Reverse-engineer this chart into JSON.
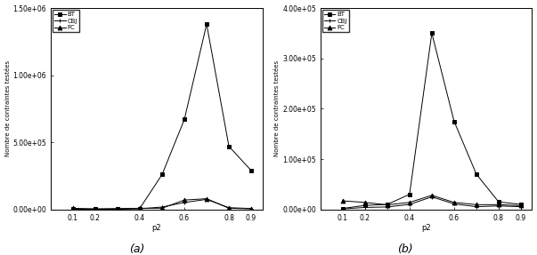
{
  "x": [
    0.1,
    0.2,
    0.3,
    0.4,
    0.5,
    0.6,
    0.7,
    0.8,
    0.9
  ],
  "chart_a": {
    "BT": [
      1500,
      2500,
      3500,
      8000,
      260000,
      670000,
      1380000,
      470000,
      290000
    ],
    "CBJ": [
      1000,
      1500,
      2500,
      4500,
      18000,
      52000,
      75000,
      13000,
      7000
    ],
    "FC": [
      8500,
      4500,
      5500,
      9000,
      9000,
      70000,
      80000,
      9000,
      4500
    ],
    "ylim": [
      0,
      1500000.0
    ],
    "yticks": [
      0.0,
      500000.0,
      1000000.0,
      1500000.0
    ],
    "yticklabels": [
      "0.00e+00",
      "5.00e+05",
      "1.00e+06",
      "1.50e+06"
    ]
  },
  "chart_b": {
    "BT": [
      2000,
      8000,
      10000,
      30000,
      350000,
      175000,
      70000,
      15000,
      10000
    ],
    "CBJ": [
      1000,
      4000,
      5000,
      10000,
      25000,
      11000,
      5500,
      7000,
      5500
    ],
    "FC": [
      17000,
      14000,
      9000,
      14000,
      28000,
      14000,
      9500,
      9500,
      7500
    ],
    "ylim": [
      0,
      400000.0
    ],
    "yticks": [
      0.0,
      100000.0,
      200000.0,
      300000.0,
      400000.0
    ],
    "yticklabels": [
      "0.00e+00",
      "1.00e+05",
      "2.00e+05",
      "3.00e+05",
      "4.00e+05"
    ]
  },
  "xlabel": "p2",
  "ylabel": "Nombre de contraintes testées",
  "legend_labels": [
    "BT",
    "CBJ",
    "FC"
  ],
  "markers": [
    "s",
    "+",
    "^"
  ],
  "caption_a": "(a)",
  "caption_b": "(b)",
  "xlim": [
    0.0,
    0.95
  ],
  "xticks": [
    0.1,
    0.2,
    0.4,
    0.6,
    0.8,
    0.9
  ],
  "xticklabels": [
    "0.1",
    "0.2",
    "0.4",
    "0.6",
    "0.8",
    "0.9"
  ]
}
